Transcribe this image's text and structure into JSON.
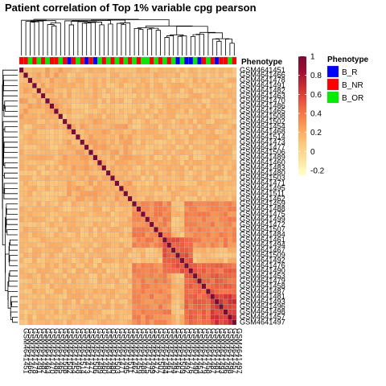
{
  "chart_data": {
    "type": "heatmap",
    "title": "Patient correlation of Top 1% variable cpg pearson",
    "samples": [
      "GSM4641451",
      "GSM4641466",
      "GSM4641478",
      "GSM4641491",
      "GSM4641482",
      "GSM4641463",
      "GSM4641470",
      "GSM4641486",
      "GSM4641465",
      "GSM4641508",
      "GSM4641502",
      "GSM4641454",
      "GSM4641468",
      "GSM4641514",
      "GSM4641473",
      "GSM4641477",
      "GSM4641506",
      "GSM4641489",
      "GSM4641460",
      "GSM4641483",
      "GSM4641480",
      "GSM4641503",
      "GSM4641471",
      "GSM4641495",
      "GSM4641511",
      "GSM4641462",
      "GSM4641459",
      "GSM4641488",
      "GSM4641475",
      "GSM4641499",
      "GSM4641472",
      "GSM4641507",
      "GSM4641484",
      "GSM4641461",
      "GSM4641494",
      "GSM4641467",
      "GSM4641509",
      "GSM4641492",
      "GSM4641476",
      "GSM4641490",
      "GSM4641453",
      "GSM4641479",
      "GSM4641458",
      "GSM4641487",
      "GSM4641481",
      "GSM4641493",
      "GSM4641496",
      "GSM4641498",
      "GSM4641457",
      "GSM4641497"
    ],
    "annotation": {
      "name": "Phenotype",
      "levels": [
        {
          "label": "B_R",
          "color": "#0000FF"
        },
        {
          "label": "B_NR",
          "color": "#FF0000"
        },
        {
          "label": "B_OR",
          "color": "#00EE00"
        }
      ],
      "sample_groups": [
        "B_NR",
        "B_NR",
        "B_OR",
        "B_NR",
        "B_OR",
        "B_NR",
        "B_OR",
        "B_NR",
        "B_NR",
        "B_OR",
        "B_NR",
        "B_R",
        "B_NR",
        "B_OR",
        "B_NR",
        "B_R",
        "B_NR",
        "B_R",
        "B_OR",
        "B_NR",
        "B_OR",
        "B_NR",
        "B_OR",
        "B_NR",
        "B_OR",
        "B_NR",
        "B_OR",
        "B_NR",
        "B_OR",
        "B_OR",
        "B_NR",
        "B_OR",
        "B_NR",
        "B_OR",
        "B_NR",
        "B_OR",
        "B_R",
        "B_OR",
        "B_R",
        "B_R",
        "B_OR",
        "B_R",
        "B_NR",
        "B_OR",
        "B_NR",
        "B_R",
        "B_NR",
        "B_NR",
        "B_OR",
        "B_NR"
      ]
    },
    "color_scale": {
      "min": -0.25,
      "max": 1.0,
      "ticks": [
        -0.2,
        0,
        0.2,
        0.4,
        0.6,
        0.8,
        1
      ],
      "colors": [
        "#FFFFCC",
        "#FEE5A0",
        "#FDCB7F",
        "#FDA85E",
        "#F77E4A",
        "#E9533D",
        "#C92B33",
        "#9E0F32",
        "#7A0B33"
      ]
    },
    "value_model": {
      "diagonal": 1.0,
      "base": 0.14,
      "clusters": [
        {
          "start": 0,
          "end": 10,
          "within": 0.2
        },
        {
          "start": 10,
          "end": 26,
          "within": 0.19
        },
        {
          "start": 26,
          "end": 35,
          "within": 0.34
        },
        {
          "start": 33,
          "end": 40,
          "within": 0.5
        },
        {
          "start": 38,
          "end": 50,
          "within": 0.45
        },
        {
          "start": 44,
          "end": 50,
          "within": 0.62
        }
      ],
      "bridges": [
        {
          "a": [
            26,
            35
          ],
          "b": [
            38,
            50
          ],
          "value": 0.33
        }
      ]
    }
  }
}
